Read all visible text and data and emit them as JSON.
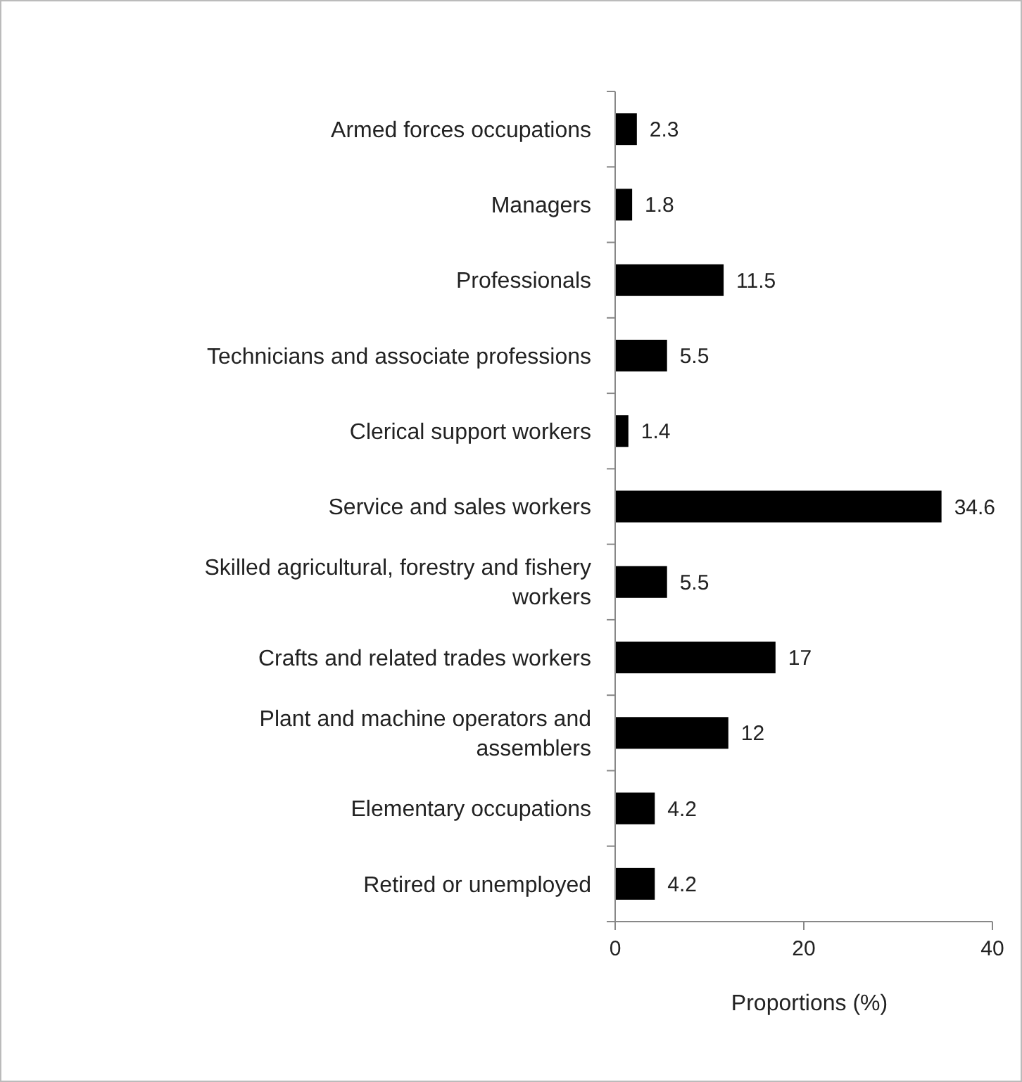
{
  "chart_data": {
    "type": "bar",
    "orientation": "horizontal",
    "xlabel": "Proportions (%)",
    "categories": [
      "Armed forces occupations",
      "Managers",
      "Professionals",
      "Technicians and associate professions",
      "Clerical support workers",
      "Service and sales workers",
      "Skilled agricultural, forestry and fishery workers",
      "Crafts and related trades workers",
      "Plant and machine operators and assemblers",
      "Elementary occupations",
      "Retired or unemployed"
    ],
    "values": [
      2.3,
      1.8,
      11.5,
      5.5,
      1.4,
      34.6,
      5.5,
      17,
      12,
      4.2,
      4.2
    ],
    "color": "#000000",
    "xlim": [
      0,
      40
    ],
    "xticks": [
      0,
      20,
      40
    ],
    "grid": false,
    "data_labels": true
  }
}
